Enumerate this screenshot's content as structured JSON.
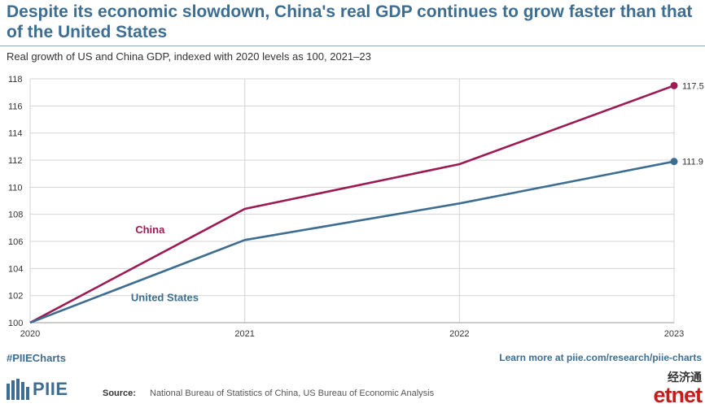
{
  "title": "Despite its economic slowdown, China's real GDP continues to grow faster than that of the United States",
  "subtitle": "Real growth of US and China GDP, indexed with 2020 levels as 100, 2021–23",
  "footer": {
    "hashtag": "#PIIECharts",
    "learn_more": "Learn more at piie.com/research/piie-charts",
    "logo_text": "PIIE",
    "source_label": "Source:",
    "source_text": "National Bureau of Statistics of China, US Bureau of Economic Analysis",
    "watermark_cn": "经济通",
    "watermark_en": "etnet"
  },
  "colors": {
    "china": "#9c1b55",
    "us": "#3d6e91",
    "grid": "#d4d4d4",
    "title": "#3d6e91"
  },
  "chart_data": {
    "type": "line",
    "x": [
      2020,
      2021,
      2022,
      2023
    ],
    "xticks": [
      "2020",
      "2021",
      "2022",
      "2023"
    ],
    "ylim": [
      100,
      118
    ],
    "yticks": [
      "100",
      "102",
      "104",
      "106",
      "108",
      "110",
      "112",
      "114",
      "116",
      "118"
    ],
    "grid": true,
    "series": [
      {
        "name": "China",
        "values": [
          100,
          108.4,
          111.7,
          117.5
        ],
        "end_label": "117.5",
        "color": "#9c1b55"
      },
      {
        "name": "United States",
        "values": [
          100,
          106.1,
          108.8,
          111.9
        ],
        "end_label": "111.9",
        "color": "#3d6e91"
      }
    ]
  }
}
